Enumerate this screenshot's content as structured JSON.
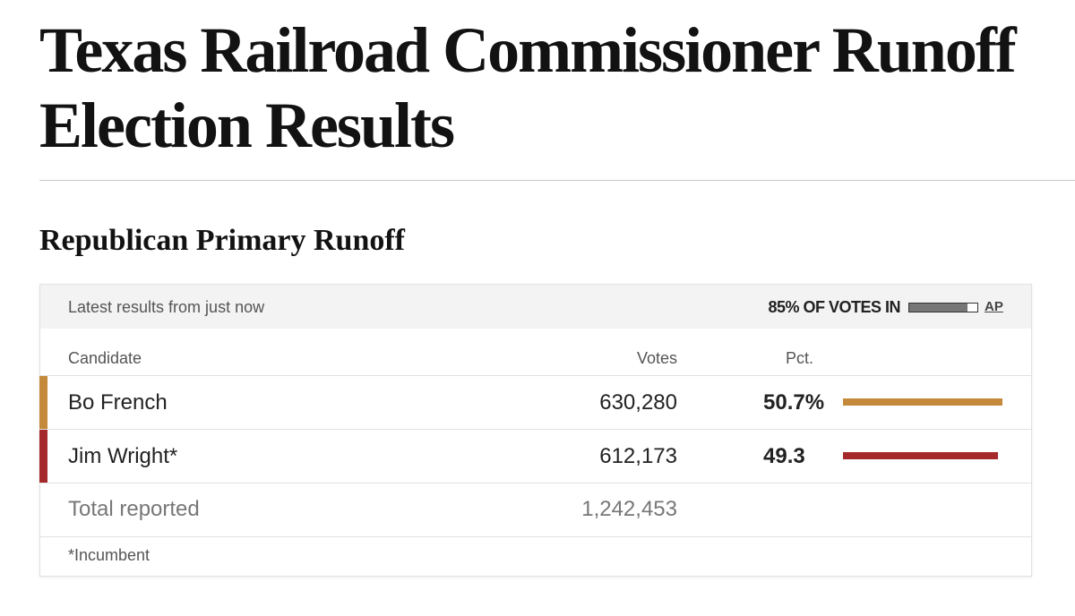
{
  "header": {
    "title": "Texas Railroad Commissioner Runoff Election Results"
  },
  "section": {
    "title": "Republican Primary Runoff"
  },
  "table": {
    "status": "Latest results from just now",
    "reporting": {
      "value": 85,
      "label": "85% OF VOTES IN"
    },
    "source": "AP",
    "columns": [
      "Candidate",
      "Votes",
      "Pct."
    ],
    "rows": [
      {
        "name": "Bo French",
        "votes": "630,280",
        "pct": 50.7,
        "pct_label": "50.7%",
        "color": "#c4893a"
      },
      {
        "name": "Jim Wright*",
        "votes": "612,173",
        "pct": 49.3,
        "pct_label": "49.3",
        "color": "#a5282b"
      }
    ],
    "total": {
      "label": "Total reported",
      "votes": "1,242,453"
    },
    "footnote": "*Incumbent"
  }
}
